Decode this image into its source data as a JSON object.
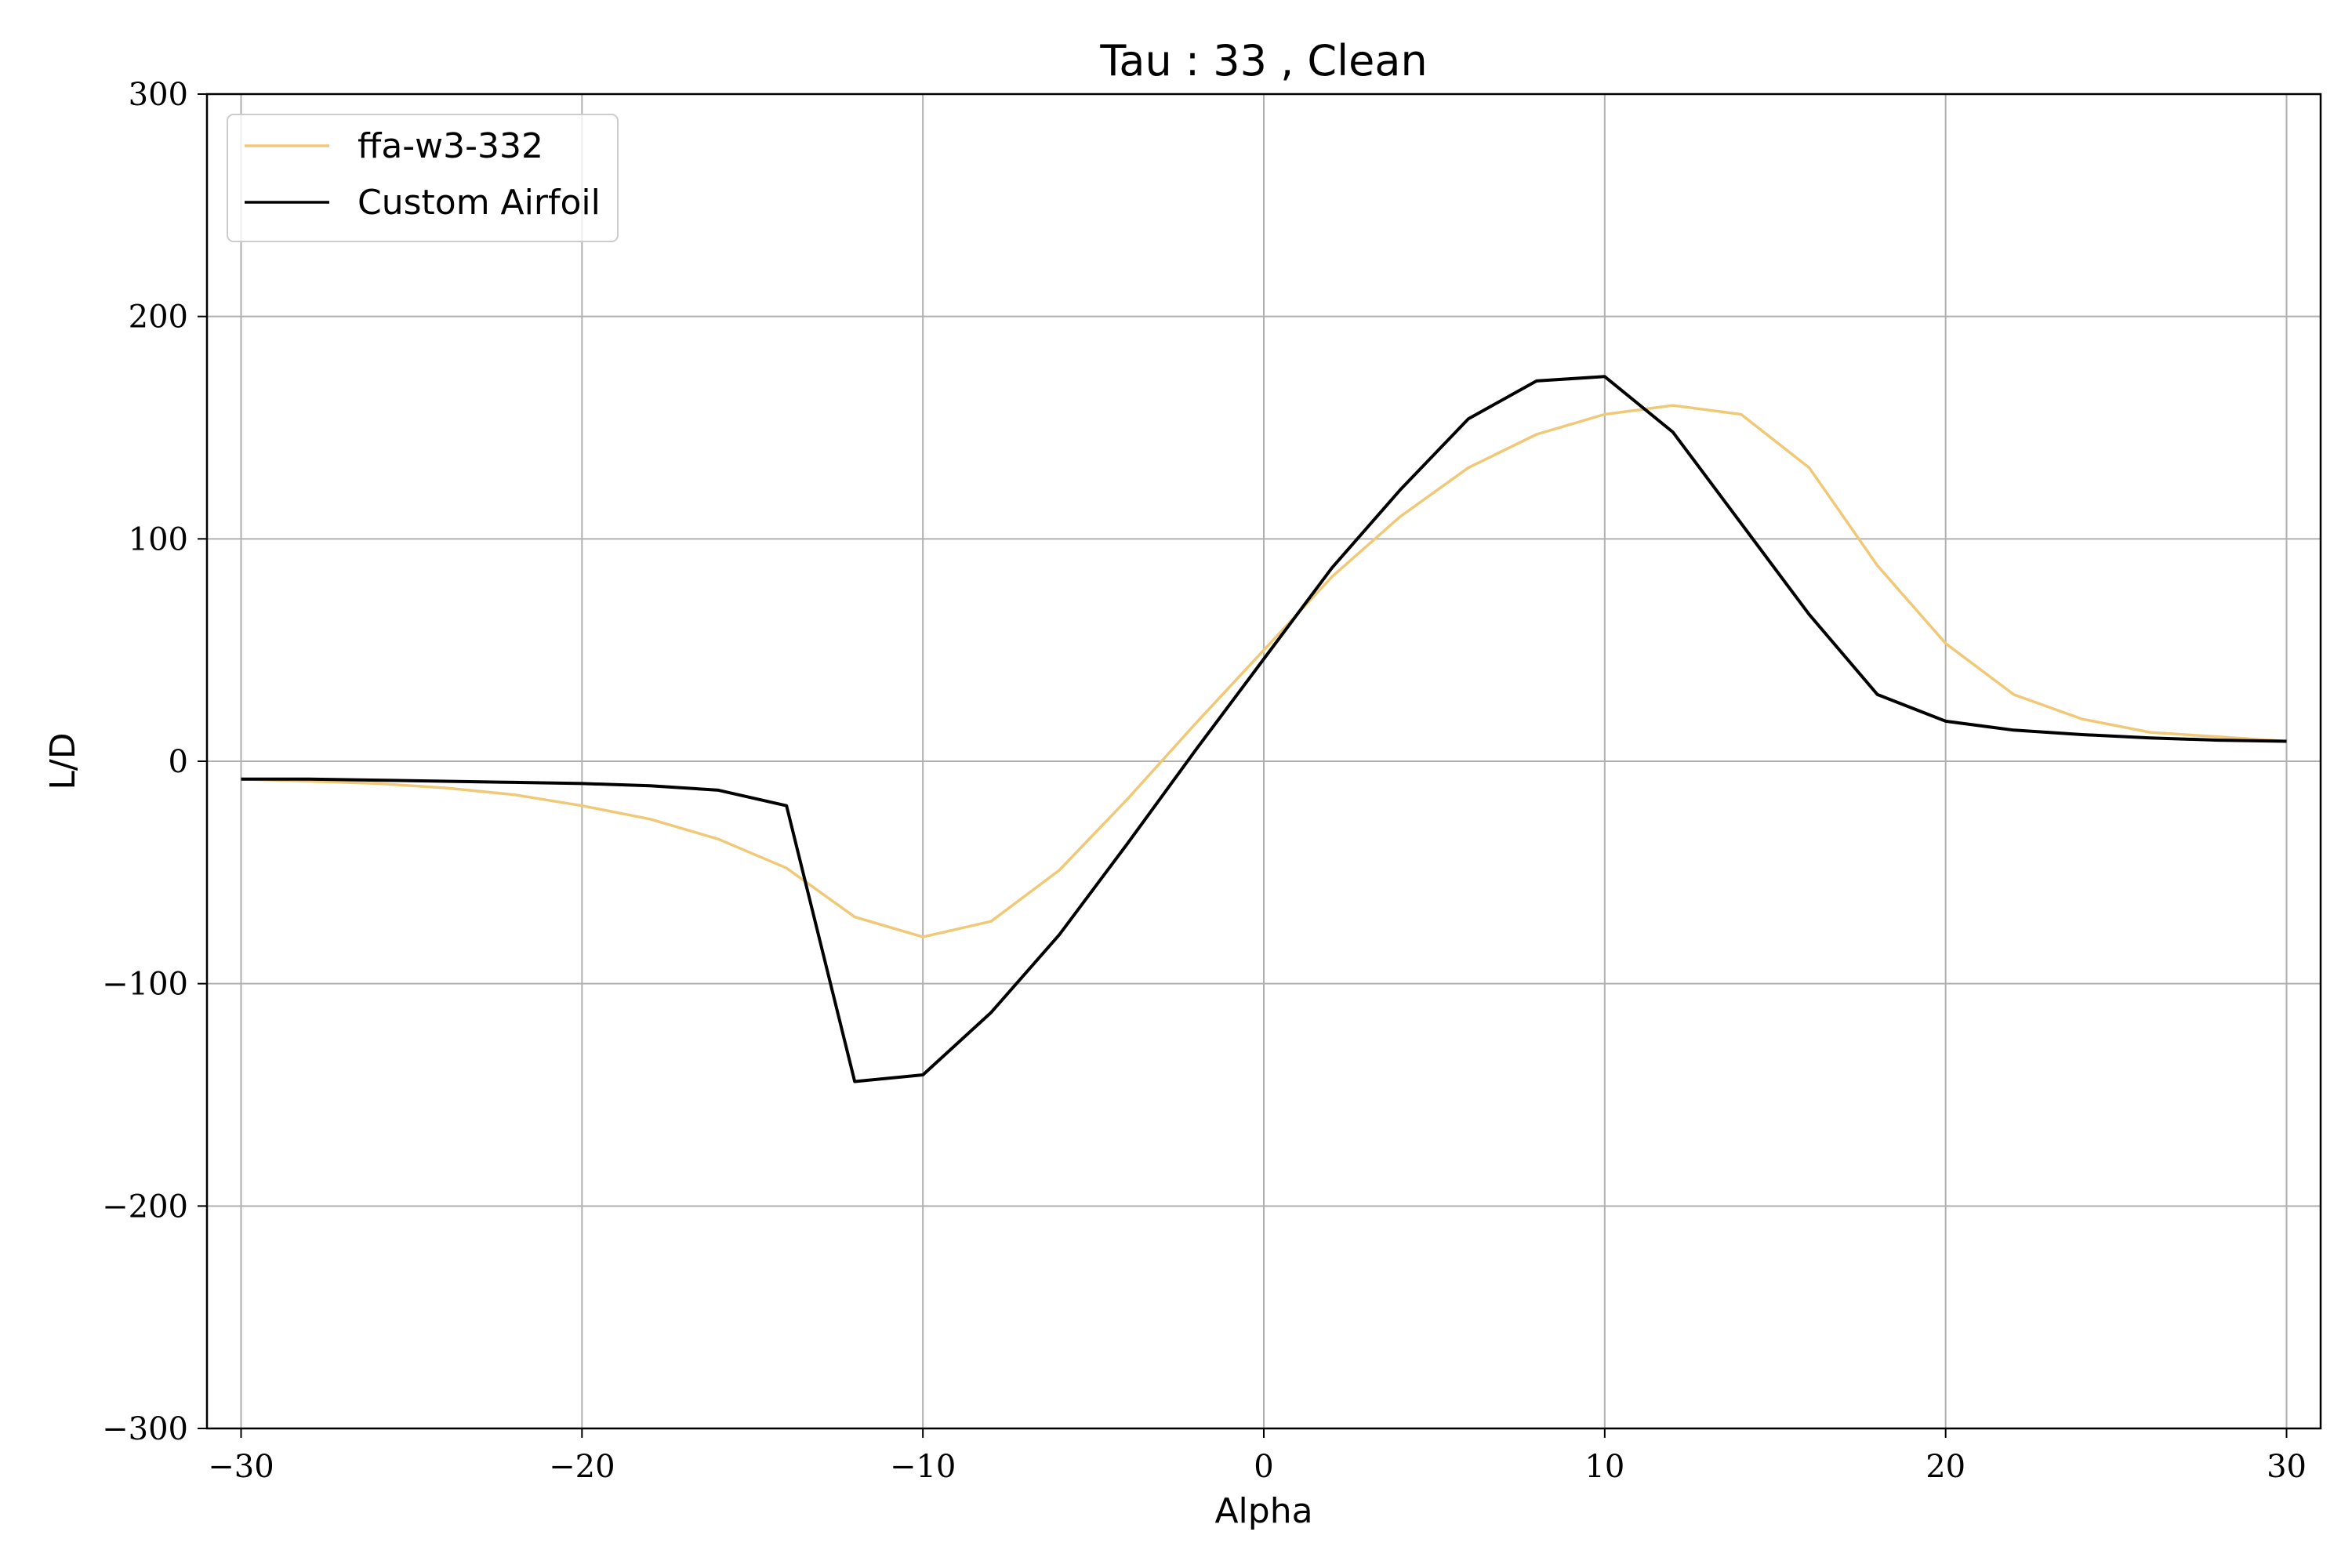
{
  "chart_data": {
    "type": "line",
    "title": "Tau : 33 , Clean",
    "xlabel": "Alpha",
    "ylabel": "L/D",
    "xlim": [
      -31,
      31
    ],
    "ylim": [
      -300,
      300
    ],
    "xticks": [
      -30,
      -20,
      -10,
      0,
      10,
      20,
      30
    ],
    "yticks": [
      -300,
      -200,
      -100,
      0,
      100,
      200,
      300
    ],
    "xtick_labels": [
      "−30",
      "−20",
      "−10",
      "0",
      "10",
      "20",
      "30"
    ],
    "ytick_labels": [
      "−300",
      "−200",
      "−100",
      "0",
      "100",
      "200",
      "300"
    ],
    "grid": true,
    "legend_position": "top-left",
    "series": [
      {
        "name": "ffa-w3-332",
        "color": "#f0c978",
        "x": [
          -30,
          -28,
          -26,
          -24,
          -22,
          -20,
          -18,
          -16,
          -14,
          -12,
          -10,
          -8,
          -6,
          -4,
          -2,
          0,
          2,
          4,
          6,
          8,
          10,
          12,
          14,
          16,
          18,
          20,
          22,
          24,
          26,
          28,
          30
        ],
        "y": [
          -8,
          -9,
          -10,
          -12,
          -15,
          -20,
          -26,
          -35,
          -48,
          -70,
          -79,
          -72,
          -49,
          -17,
          17,
          50,
          83,
          110,
          132,
          147,
          156,
          160,
          156,
          132,
          88,
          53,
          30,
          19,
          13,
          11,
          9
        ]
      },
      {
        "name": "Custom Airfoil",
        "color": "#000000",
        "x": [
          -30,
          -28,
          -26,
          -24,
          -22,
          -20,
          -18,
          -16,
          -14,
          -12,
          -10,
          -8,
          -6,
          -4,
          -2,
          0,
          2,
          4,
          6,
          8,
          10,
          12,
          14,
          16,
          18,
          20,
          22,
          24,
          26,
          28,
          30
        ],
        "y": [
          -8,
          -8,
          -8.5,
          -9,
          -9.5,
          -10,
          -11,
          -13,
          -20,
          -144,
          -141,
          -113,
          -78,
          -37,
          5,
          46,
          87,
          122,
          154,
          171,
          173,
          148,
          107,
          66,
          30,
          18,
          14,
          12,
          10.5,
          9.5,
          9
        ]
      }
    ]
  }
}
